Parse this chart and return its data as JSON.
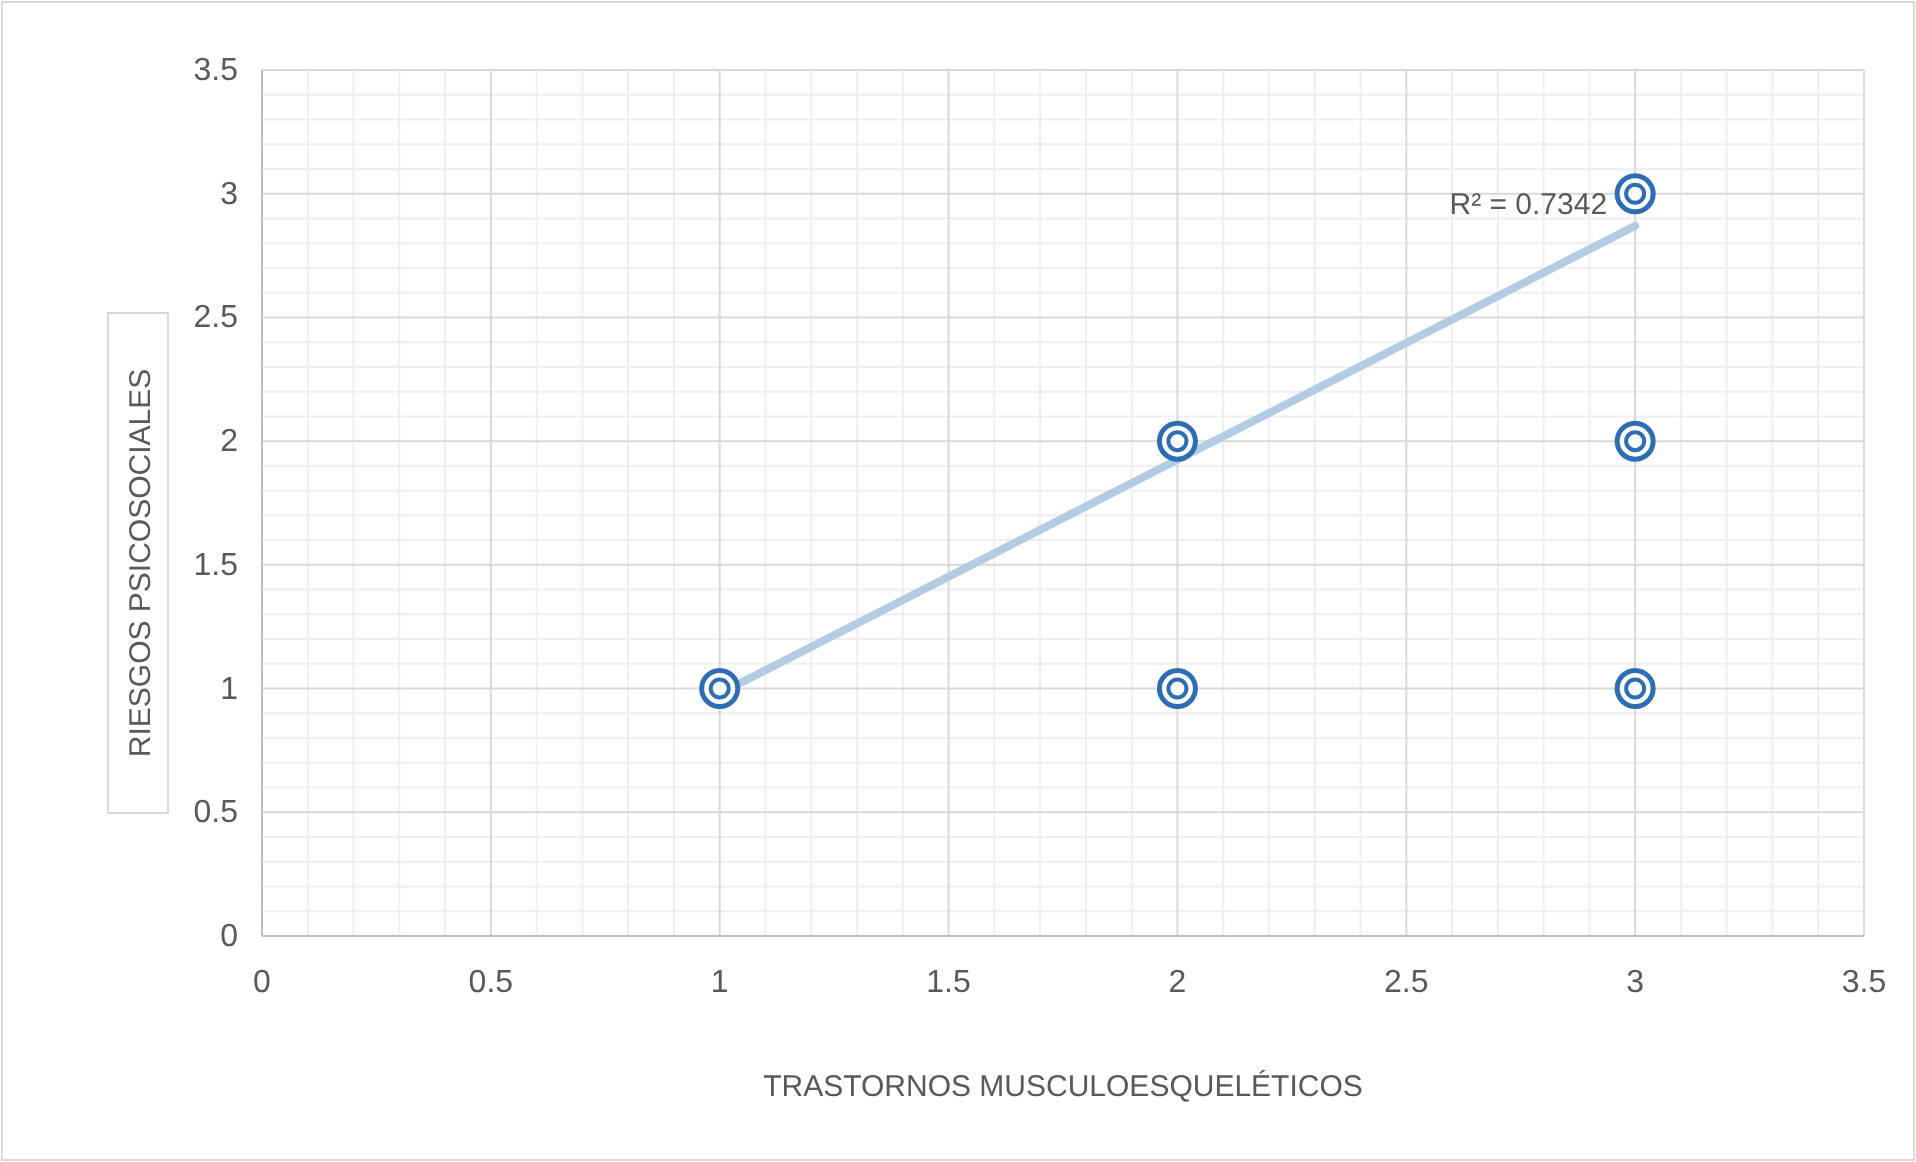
{
  "chart_data": {
    "type": "scatter",
    "xlabel": "TRASTORNOS MUSCULOESQUELÉTICOS",
    "ylabel": "RIESGOS PSICOSOCIALES",
    "xlim": [
      0,
      3.5
    ],
    "ylim": [
      0,
      3.5
    ],
    "xticks": [
      0,
      0.5,
      1,
      1.5,
      2,
      2.5,
      3,
      3.5
    ],
    "yticks": [
      0,
      0.5,
      1,
      1.5,
      2,
      2.5,
      3,
      3.5
    ],
    "grid": true,
    "annotations": [
      "R² = 0.7342"
    ],
    "series": [
      {
        "marker": "circle",
        "color": "#2e6db4",
        "x": [
          1,
          2,
          2,
          3,
          3,
          3
        ],
        "values": [
          1,
          2,
          1,
          3,
          2,
          1
        ]
      },
      {
        "type": "line",
        "color": "#b4cbe4",
        "x": [
          1,
          3
        ],
        "values": [
          0.98,
          2.87
        ]
      }
    ]
  }
}
